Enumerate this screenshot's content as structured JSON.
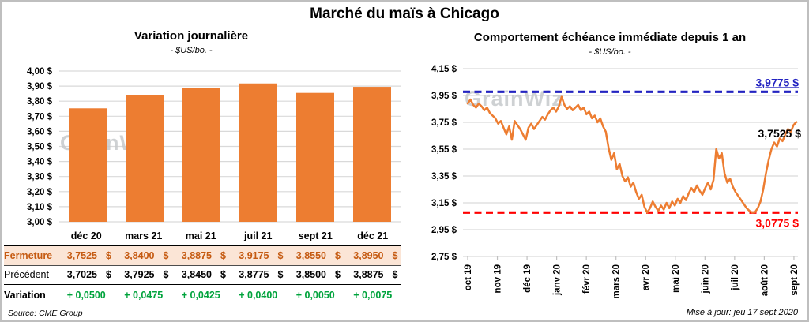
{
  "page": {
    "title": "Marché du maïs à Chicago"
  },
  "watermark": "GrainWiz",
  "footer": {
    "source": "Source: CME Group",
    "updated": "Mise à jour: jeu 17 sept 2020"
  },
  "colors": {
    "bar_orange": "#ED7D31",
    "line_orange": "#ED7D31",
    "ref_high_blue": "#2323C1",
    "ref_low_red": "#FF0000",
    "close_row_text": "#C55A11",
    "close_row_bg": "#FBE5D6",
    "variation_green": "#00A33C",
    "gridline": "#D9D9D9"
  },
  "table": {
    "columns": [
      "déc 20",
      "mars 21",
      "mai 21",
      "juil 21",
      "sept 21",
      "déc 21"
    ],
    "currency": "$",
    "rows": [
      {
        "label": "Fermeture",
        "style": "row-close",
        "suffix": "$",
        "values": [
          "3,7525",
          "3,8400",
          "3,8875",
          "3,9175",
          "3,8550",
          "3,8950"
        ]
      },
      {
        "label": "Précédent",
        "style": "row-prev",
        "suffix": "$",
        "values": [
          "3,7025",
          "3,7925",
          "3,8450",
          "3,8775",
          "3,8500",
          "3,8875"
        ]
      },
      {
        "label": "Variation",
        "style": "row-var",
        "suffix": "",
        "values": [
          "+ 0,0500",
          "+ 0,0475",
          "+ 0,0425",
          "+ 0,0400",
          "+ 0,0050",
          "+ 0,0075"
        ]
      }
    ]
  },
  "chart_data": [
    {
      "type": "bar",
      "title": "Variation journalière",
      "subtitle": "- $US/bo. -",
      "categories": [
        "déc 20",
        "mars 21",
        "mai 21",
        "juil 21",
        "sept 21",
        "déc 21"
      ],
      "values": [
        3.7525,
        3.84,
        3.8875,
        3.9175,
        3.855,
        3.895
      ],
      "ylim": [
        3.0,
        4.0
      ],
      "ytick_values": [
        4.0,
        3.9,
        3.8,
        3.7,
        3.6,
        3.5,
        3.4,
        3.3,
        3.2,
        3.1,
        3.0
      ],
      "ytick_labels": [
        "4,00 $",
        "3,90 $",
        "3,80 $",
        "3,70 $",
        "3,60 $",
        "3,50 $",
        "3,40 $",
        "3,30 $",
        "3,20 $",
        "3,10 $",
        "3,00 $"
      ],
      "bar_color": "#ED7D31",
      "grid": true,
      "legend": "none"
    },
    {
      "type": "line",
      "title": "Comportement échéance immédiate depuis 1 an",
      "subtitle": "- $US/bo. -",
      "x_labels": [
        "oct 19",
        "nov 19",
        "déc 19",
        "janv 20",
        "févr 20",
        "mars 20",
        "avr 20",
        "mai 20",
        "juin 20",
        "juil 20",
        "août 20",
        "sept 20"
      ],
      "values": [
        3.89,
        3.92,
        3.88,
        3.86,
        3.89,
        3.87,
        3.84,
        3.86,
        3.82,
        3.8,
        3.78,
        3.74,
        3.76,
        3.71,
        3.66,
        3.72,
        3.62,
        3.76,
        3.73,
        3.7,
        3.66,
        3.62,
        3.71,
        3.74,
        3.7,
        3.73,
        3.76,
        3.79,
        3.77,
        3.81,
        3.84,
        3.86,
        3.83,
        3.87,
        3.94,
        3.88,
        3.85,
        3.87,
        3.84,
        3.86,
        3.88,
        3.84,
        3.86,
        3.81,
        3.83,
        3.78,
        3.8,
        3.75,
        3.78,
        3.72,
        3.68,
        3.56,
        3.47,
        3.52,
        3.4,
        3.44,
        3.35,
        3.31,
        3.34,
        3.27,
        3.3,
        3.23,
        3.18,
        3.21,
        3.12,
        3.0775,
        3.11,
        3.16,
        3.12,
        3.09,
        3.13,
        3.1,
        3.15,
        3.11,
        3.16,
        3.13,
        3.18,
        3.15,
        3.2,
        3.17,
        3.22,
        3.26,
        3.23,
        3.28,
        3.24,
        3.21,
        3.26,
        3.3,
        3.25,
        3.32,
        3.55,
        3.48,
        3.52,
        3.37,
        3.3,
        3.33,
        3.27,
        3.23,
        3.2,
        3.17,
        3.14,
        3.11,
        3.09,
        3.0775,
        3.08,
        3.11,
        3.16,
        3.25,
        3.37,
        3.47,
        3.55,
        3.6,
        3.57,
        3.63,
        3.61,
        3.66,
        3.7,
        3.68,
        3.73,
        3.7525
      ],
      "ylim": [
        2.75,
        4.15
      ],
      "ytick_values": [
        4.15,
        3.95,
        3.75,
        3.55,
        3.35,
        3.15,
        2.95,
        2.75
      ],
      "ytick_labels": [
        "4,15 $",
        "3,95 $",
        "3,75 $",
        "3,55 $",
        "3,35 $",
        "3,15 $",
        "2,95 $",
        "2,75 $"
      ],
      "line_color": "#ED7D31",
      "ref_lines": [
        {
          "value": 3.9775,
          "label": "3,9775 $",
          "color": "#2323C1",
          "underline": true
        },
        {
          "value": 3.0775,
          "label": "3,0775 $",
          "color": "#FF0000",
          "underline": false
        }
      ],
      "last_label": {
        "value": 3.7525,
        "label": "3,7525 $",
        "color": "#000000"
      },
      "grid": true,
      "legend": "none"
    }
  ]
}
